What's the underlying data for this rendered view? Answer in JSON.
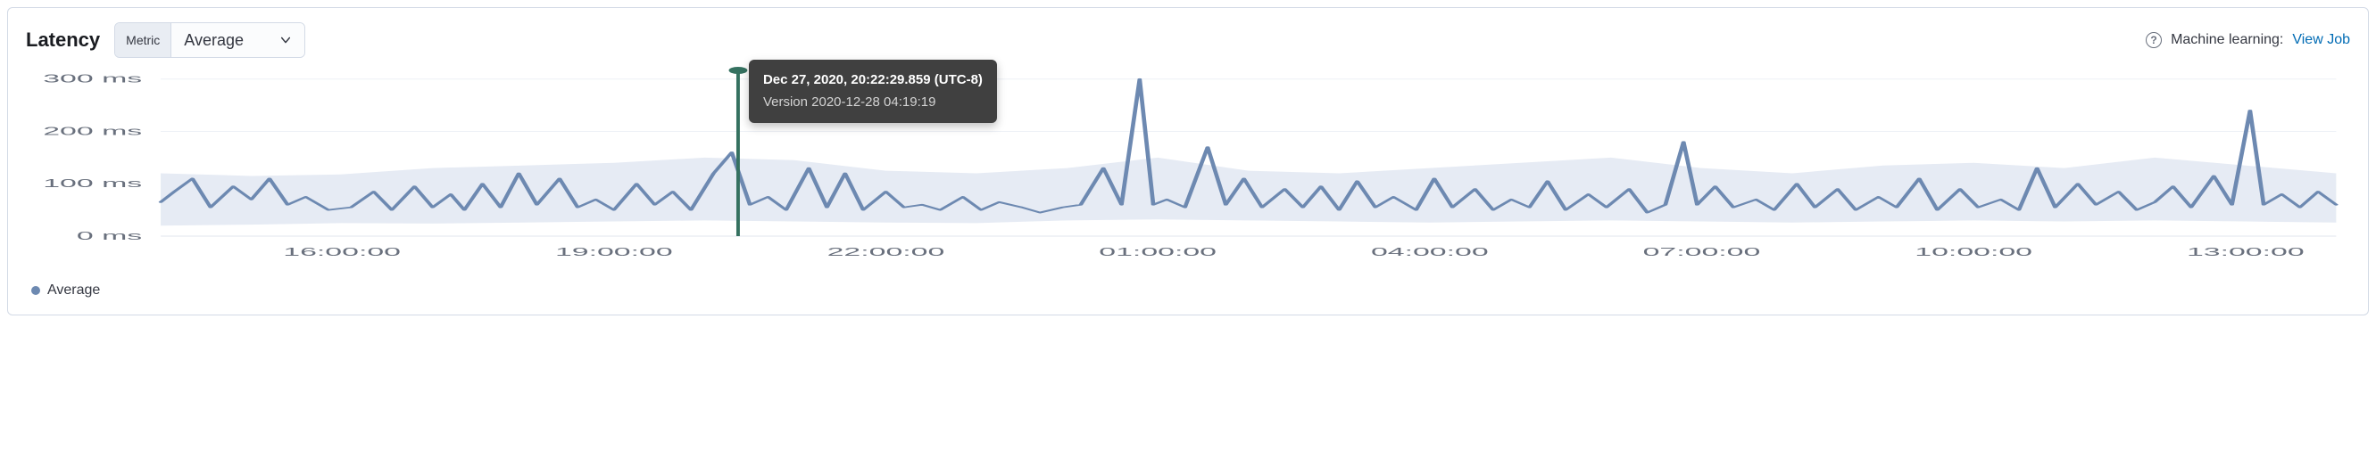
{
  "panel": {
    "title": "Latency",
    "metric_label": "Metric",
    "metric_value": "Average"
  },
  "header_right": {
    "ml_text": "Machine learning:",
    "ml_link": "View Job"
  },
  "tooltip": {
    "title": "Dec 27, 2020, 20:22:29.859 (UTC-8)",
    "body": "Version 2020-12-28 04:19:19",
    "marker_x_value": 20.37
  },
  "legend": {
    "label": "Average",
    "color": "#6d89b1"
  },
  "chart": {
    "type": "line",
    "background_color": "#ffffff",
    "grid_color": "#eef1f6",
    "line_color": "#6d89b1",
    "band_color": "#e6ebf4",
    "marker_color": "#357160",
    "axis_label_color": "#69707d",
    "axis_font_size": 13,
    "line_width": 1.8,
    "y": {
      "lim": [
        0,
        320
      ],
      "ticks": [
        0,
        100,
        200,
        300
      ],
      "tick_labels": [
        "0 ms",
        "100 ms",
        "200 ms",
        "300 ms"
      ],
      "unit": "ms"
    },
    "x": {
      "lim": [
        14,
        38
      ],
      "ticks": [
        16,
        19,
        22,
        25,
        28,
        31,
        34,
        37
      ],
      "tick_labels": [
        "16:00:00",
        "19:00:00",
        "22:00:00",
        "01:00:00",
        "04:00:00",
        "07:00:00",
        "10:00:00",
        "13:00:00"
      ]
    },
    "band": [
      {
        "x": 14,
        "lo": 20,
        "hi": 120
      },
      {
        "x": 15,
        "lo": 22,
        "hi": 115
      },
      {
        "x": 16,
        "lo": 25,
        "hi": 118
      },
      {
        "x": 17,
        "lo": 24,
        "hi": 130
      },
      {
        "x": 18,
        "lo": 26,
        "hi": 135
      },
      {
        "x": 19,
        "lo": 28,
        "hi": 140
      },
      {
        "x": 20,
        "lo": 30,
        "hi": 150
      },
      {
        "x": 21,
        "lo": 28,
        "hi": 145
      },
      {
        "x": 22,
        "lo": 26,
        "hi": 125
      },
      {
        "x": 23,
        "lo": 25,
        "hi": 120
      },
      {
        "x": 24,
        "lo": 30,
        "hi": 130
      },
      {
        "x": 25,
        "lo": 32,
        "hi": 150
      },
      {
        "x": 26,
        "lo": 30,
        "hi": 125
      },
      {
        "x": 27,
        "lo": 28,
        "hi": 120
      },
      {
        "x": 28,
        "lo": 26,
        "hi": 130
      },
      {
        "x": 29,
        "lo": 28,
        "hi": 140
      },
      {
        "x": 30,
        "lo": 30,
        "hi": 150
      },
      {
        "x": 31,
        "lo": 28,
        "hi": 130
      },
      {
        "x": 32,
        "lo": 26,
        "hi": 120
      },
      {
        "x": 33,
        "lo": 28,
        "hi": 135
      },
      {
        "x": 34,
        "lo": 30,
        "hi": 140
      },
      {
        "x": 35,
        "lo": 28,
        "hi": 130
      },
      {
        "x": 36,
        "lo": 30,
        "hi": 150
      },
      {
        "x": 37,
        "lo": 28,
        "hi": 135
      },
      {
        "x": 38,
        "lo": 26,
        "hi": 120
      }
    ],
    "series": [
      {
        "x": 14.0,
        "y": 65
      },
      {
        "x": 14.15,
        "y": 85
      },
      {
        "x": 14.35,
        "y": 110
      },
      {
        "x": 14.55,
        "y": 55
      },
      {
        "x": 14.8,
        "y": 95
      },
      {
        "x": 15.0,
        "y": 70
      },
      {
        "x": 15.2,
        "y": 110
      },
      {
        "x": 15.4,
        "y": 60
      },
      {
        "x": 15.6,
        "y": 75
      },
      {
        "x": 15.85,
        "y": 50
      },
      {
        "x": 16.1,
        "y": 55
      },
      {
        "x": 16.35,
        "y": 85
      },
      {
        "x": 16.55,
        "y": 50
      },
      {
        "x": 16.8,
        "y": 95
      },
      {
        "x": 17.0,
        "y": 55
      },
      {
        "x": 17.2,
        "y": 80
      },
      {
        "x": 17.35,
        "y": 50
      },
      {
        "x": 17.55,
        "y": 100
      },
      {
        "x": 17.75,
        "y": 55
      },
      {
        "x": 17.95,
        "y": 120
      },
      {
        "x": 18.15,
        "y": 60
      },
      {
        "x": 18.4,
        "y": 110
      },
      {
        "x": 18.6,
        "y": 55
      },
      {
        "x": 18.8,
        "y": 70
      },
      {
        "x": 19.0,
        "y": 50
      },
      {
        "x": 19.25,
        "y": 100
      },
      {
        "x": 19.45,
        "y": 60
      },
      {
        "x": 19.65,
        "y": 85
      },
      {
        "x": 19.85,
        "y": 50
      },
      {
        "x": 20.1,
        "y": 120
      },
      {
        "x": 20.3,
        "y": 160
      },
      {
        "x": 20.5,
        "y": 60
      },
      {
        "x": 20.7,
        "y": 75
      },
      {
        "x": 20.9,
        "y": 50
      },
      {
        "x": 21.15,
        "y": 130
      },
      {
        "x": 21.35,
        "y": 55
      },
      {
        "x": 21.55,
        "y": 120
      },
      {
        "x": 21.75,
        "y": 50
      },
      {
        "x": 22.0,
        "y": 85
      },
      {
        "x": 22.2,
        "y": 55
      },
      {
        "x": 22.4,
        "y": 60
      },
      {
        "x": 22.6,
        "y": 50
      },
      {
        "x": 22.85,
        "y": 75
      },
      {
        "x": 23.05,
        "y": 50
      },
      {
        "x": 23.25,
        "y": 65
      },
      {
        "x": 23.5,
        "y": 55
      },
      {
        "x": 23.7,
        "y": 45
      },
      {
        "x": 23.95,
        "y": 55
      },
      {
        "x": 24.15,
        "y": 60
      },
      {
        "x": 24.4,
        "y": 130
      },
      {
        "x": 24.6,
        "y": 60
      },
      {
        "x": 24.8,
        "y": 300
      },
      {
        "x": 24.95,
        "y": 60
      },
      {
        "x": 25.1,
        "y": 70
      },
      {
        "x": 25.3,
        "y": 55
      },
      {
        "x": 25.55,
        "y": 170
      },
      {
        "x": 25.75,
        "y": 60
      },
      {
        "x": 25.95,
        "y": 110
      },
      {
        "x": 26.15,
        "y": 55
      },
      {
        "x": 26.4,
        "y": 90
      },
      {
        "x": 26.6,
        "y": 55
      },
      {
        "x": 26.8,
        "y": 95
      },
      {
        "x": 27.0,
        "y": 50
      },
      {
        "x": 27.2,
        "y": 105
      },
      {
        "x": 27.4,
        "y": 55
      },
      {
        "x": 27.6,
        "y": 75
      },
      {
        "x": 27.85,
        "y": 50
      },
      {
        "x": 28.05,
        "y": 110
      },
      {
        "x": 28.25,
        "y": 55
      },
      {
        "x": 28.5,
        "y": 90
      },
      {
        "x": 28.7,
        "y": 50
      },
      {
        "x": 28.9,
        "y": 70
      },
      {
        "x": 29.1,
        "y": 55
      },
      {
        "x": 29.3,
        "y": 105
      },
      {
        "x": 29.5,
        "y": 50
      },
      {
        "x": 29.75,
        "y": 80
      },
      {
        "x": 29.95,
        "y": 55
      },
      {
        "x": 30.2,
        "y": 90
      },
      {
        "x": 30.4,
        "y": 45
      },
      {
        "x": 30.6,
        "y": 60
      },
      {
        "x": 30.8,
        "y": 180
      },
      {
        "x": 30.95,
        "y": 60
      },
      {
        "x": 31.15,
        "y": 95
      },
      {
        "x": 31.35,
        "y": 55
      },
      {
        "x": 31.6,
        "y": 70
      },
      {
        "x": 31.8,
        "y": 50
      },
      {
        "x": 32.05,
        "y": 100
      },
      {
        "x": 32.25,
        "y": 55
      },
      {
        "x": 32.5,
        "y": 90
      },
      {
        "x": 32.7,
        "y": 50
      },
      {
        "x": 32.95,
        "y": 75
      },
      {
        "x": 33.15,
        "y": 55
      },
      {
        "x": 33.4,
        "y": 110
      },
      {
        "x": 33.6,
        "y": 50
      },
      {
        "x": 33.85,
        "y": 90
      },
      {
        "x": 34.05,
        "y": 55
      },
      {
        "x": 34.3,
        "y": 70
      },
      {
        "x": 34.5,
        "y": 50
      },
      {
        "x": 34.7,
        "y": 130
      },
      {
        "x": 34.9,
        "y": 55
      },
      {
        "x": 35.15,
        "y": 100
      },
      {
        "x": 35.35,
        "y": 60
      },
      {
        "x": 35.6,
        "y": 85
      },
      {
        "x": 35.8,
        "y": 50
      },
      {
        "x": 36.0,
        "y": 65
      },
      {
        "x": 36.2,
        "y": 95
      },
      {
        "x": 36.4,
        "y": 55
      },
      {
        "x": 36.65,
        "y": 115
      },
      {
        "x": 36.85,
        "y": 60
      },
      {
        "x": 37.05,
        "y": 240
      },
      {
        "x": 37.2,
        "y": 60
      },
      {
        "x": 37.4,
        "y": 80
      },
      {
        "x": 37.6,
        "y": 55
      },
      {
        "x": 37.8,
        "y": 85
      },
      {
        "x": 38.0,
        "y": 60
      }
    ]
  }
}
